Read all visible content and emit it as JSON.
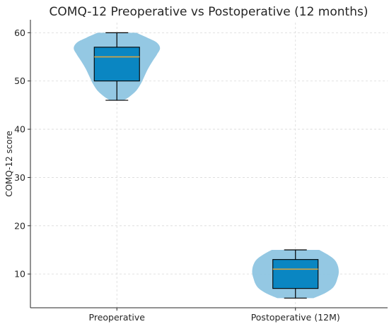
{
  "chart_data": {
    "type": "violin",
    "title": "COMQ-12 Preoperative vs Postoperative (12 months)",
    "xlabel": "",
    "ylabel": "COMQ-12 score",
    "ylim": [
      44,
      62
    ],
    "yticks": [
      10,
      20,
      30,
      40,
      50,
      60
    ],
    "grid": true,
    "categories": [
      "Preoperative",
      "Postoperative (12M)"
    ],
    "groups": [
      {
        "category": "Preoperative",
        "min": 46,
        "q1": 50,
        "median": 55,
        "q3": 57,
        "max": 60,
        "density": [
          [
            46,
            0.16
          ],
          [
            46.8,
            0.3
          ],
          [
            48,
            0.45
          ],
          [
            49.5,
            0.56
          ],
          [
            51,
            0.64
          ],
          [
            52.5,
            0.72
          ],
          [
            54,
            0.82
          ],
          [
            55.5,
            0.93
          ],
          [
            56.8,
            1.0
          ],
          [
            58,
            0.92
          ],
          [
            59,
            0.7
          ],
          [
            60,
            0.45
          ]
        ]
      },
      {
        "category": "Postoperative (12M)",
        "min": 5,
        "q1": 7,
        "median": 11,
        "q3": 13,
        "max": 15,
        "density": [
          [
            5,
            0.42
          ],
          [
            6,
            0.68
          ],
          [
            7,
            0.85
          ],
          [
            8,
            0.93
          ],
          [
            9,
            0.97
          ],
          [
            10,
            1.0
          ],
          [
            11,
            1.0
          ],
          [
            12,
            0.97
          ],
          [
            13,
            0.9
          ],
          [
            14,
            0.75
          ],
          [
            15,
            0.55
          ]
        ]
      }
    ],
    "colors": {
      "violin": "#8ec5e2",
      "box": "#0a86c2",
      "median": "#d9a441",
      "grid": "#d9d9d9",
      "axis": "#262626"
    }
  }
}
